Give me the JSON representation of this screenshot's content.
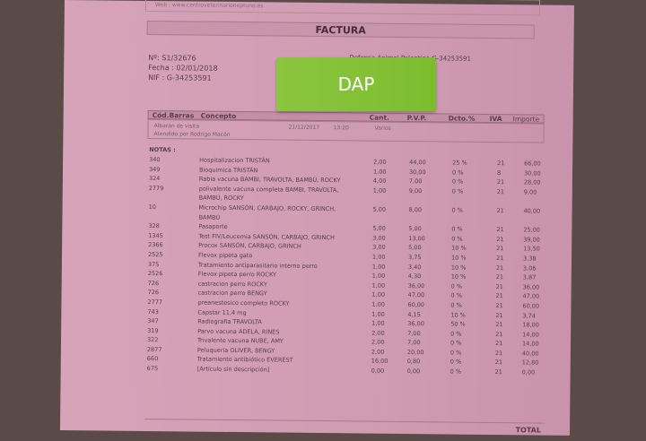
{
  "header": {
    "web": "Web : www.centroveterinarioneptuno.es",
    "title": "FACTURA"
  },
  "invoice": {
    "number": "Nº: S1/32676",
    "date": "Fecha : 02/01/2018",
    "nif": "NIF : G-34253591",
    "client": "Defensa Animal Palentina   G-34253591"
  },
  "sticker": {
    "text": "DAP",
    "color": "#84c236"
  },
  "table": {
    "columns": [
      "Cód.Barras",
      "Concepto",
      "Cant.",
      "P.V.P.",
      "Dcto.%",
      "IVA",
      "Importe"
    ],
    "albaran": {
      "label": "Albarán de visita",
      "date": "21/12/2017",
      "time": "13:20",
      "type": "Varios",
      "attended": "Atendido por Rodrigo Macón"
    },
    "notes_label": "NOTAS :",
    "rows": [
      [
        "340",
        "Hospitalizacion  TRISTÁN",
        "2,00",
        "44,00",
        "25 %",
        "21",
        "66,00"
      ],
      [
        "349",
        "Bioquimica TRISTÁN",
        "1,00",
        "30,00",
        "0 %",
        "8",
        "30,00"
      ],
      [
        "324",
        "Rabia vacuna BAMBI, TRAVOLTA, BAMBÚ, ROCKY",
        "4,00",
        "7,00",
        "0 %",
        "21",
        "28,00"
      ],
      [
        "2779",
        "polivalente vacuna completa BAMBI, TRAVOLTA,",
        "1,00",
        "9,00",
        "0 %",
        "21",
        "9,00"
      ],
      [
        "",
        "BAMBÚ, ROCKY",
        "",
        "",
        "",
        "",
        ""
      ],
      [
        "10",
        "Microchip SANSÓN, CARBAJO, ROCKY, GRINCH,",
        "5,00",
        "8,00",
        "0 %",
        "21",
        "40,00"
      ],
      [
        "",
        "BAMBÚ",
        "",
        "",
        "",
        "",
        ""
      ],
      [
        "328",
        "Pasaporte",
        "5,00",
        "5,00",
        "0 %",
        "21",
        "25,00"
      ],
      [
        "1345",
        "Test FIV/Leucemia SANSÓN,  CARBAJO, GRINCH",
        "3,00",
        "13,00",
        "0 %",
        "21",
        "39,00"
      ],
      [
        "2366",
        "Procox SANSÓN, CARBAJO, GRINCH",
        "3,00",
        "5,00",
        "10 %",
        "21",
        "13,50"
      ],
      [
        "2525",
        "Flevox pipeta gato",
        "1,00",
        "3,75",
        "10 %",
        "21",
        "3,38"
      ],
      [
        "375",
        "Tratamiento antiparasitario interno perro",
        "1,00",
        "3,40",
        "10 %",
        "21",
        "3,06"
      ],
      [
        "2526",
        "Flevox pipeta perro ROCKY",
        "1,00",
        "4,30",
        "10 %",
        "21",
        "3,87"
      ],
      [
        "726",
        "castracion perro ROCKY",
        "1,00",
        "36,00",
        "0 %",
        "21",
        "36,00"
      ],
      [
        "726",
        "castracion perro BENGY",
        "1,00",
        "47,00",
        "0 %",
        "21",
        "47,00"
      ],
      [
        "2777",
        "preanestesico completo ROCKY",
        "1,00",
        "60,00",
        "0 %",
        "21",
        "60,00"
      ],
      [
        "743",
        "Capstar 11,4 mg",
        "1,00",
        "4,15",
        "10 %",
        "21",
        "3,74"
      ],
      [
        "347",
        "Radiografia TRAVOLTA",
        "1,00",
        "36,00",
        "50 %",
        "21",
        "18,00"
      ],
      [
        "319",
        "Parvo  vacuna ADELA, RINES",
        "2,00",
        "7,00",
        "0 %",
        "21",
        "14,00"
      ],
      [
        "322",
        "Trivalente vacuna NUBE, AMY",
        "2,00",
        "7,00",
        "0 %",
        "21",
        "14,00"
      ],
      [
        "2877",
        "Peluqueria OLIVER, BENGY",
        "2,00",
        "20,00",
        "0 %",
        "21",
        "40,00"
      ],
      [
        "660",
        "Tratamiento antibiótico EVEREST",
        "16,00",
        "0,80",
        "0 %",
        "21",
        "12,80"
      ],
      [
        "675",
        "[Artículo sin descripción]",
        "0,00",
        "0,00",
        "0 %",
        "21",
        "0,00"
      ]
    ]
  },
  "footer": {
    "total_label": "TOTAL"
  }
}
